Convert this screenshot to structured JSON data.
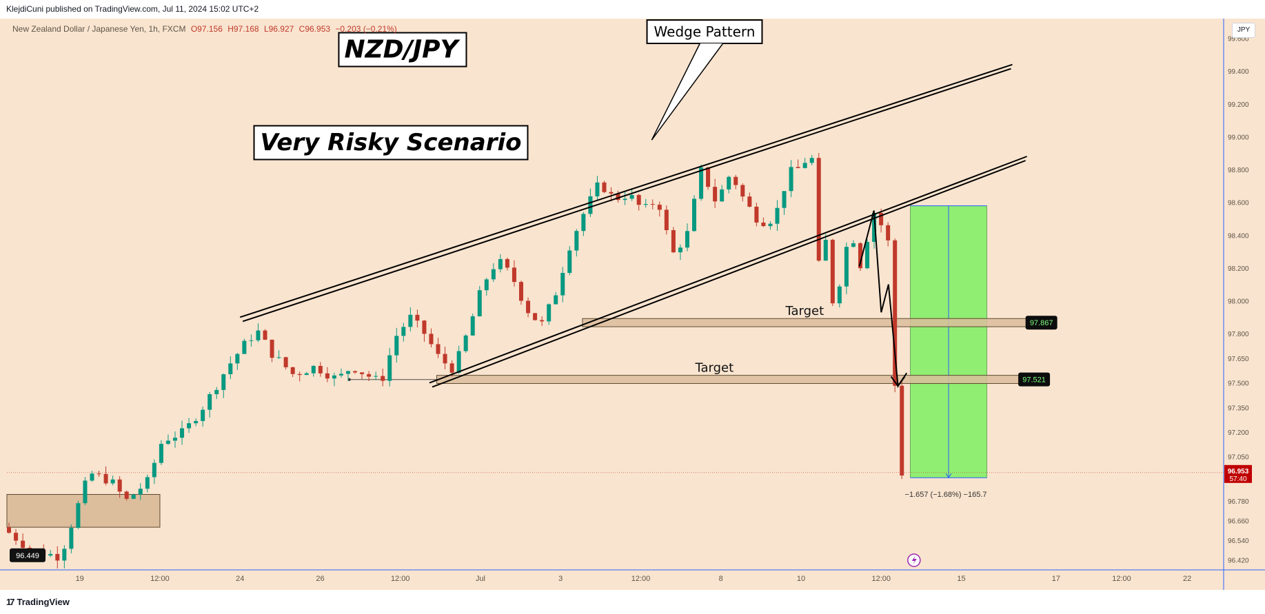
{
  "header": {
    "published_by": "KlejdiCuni published on TradingView.com, Jul 11, 2024 15:02 UTC+2"
  },
  "legend": {
    "symbol": "New Zealand Dollar / Japanese Yen, 1h, FXCM",
    "open": "O97.156",
    "high": "H97.168",
    "low": "L96.927",
    "close": "C96.953",
    "change": "−0.203 (−0.21%)"
  },
  "currency_button": "JPY",
  "footer": {
    "brand": "TradingView",
    "logo_icon": "tradingview-logo-icon"
  },
  "colors": {
    "background": "#f9e4cf",
    "up_candle": "#089981",
    "down_candle": "#c0392b",
    "target_zone": "#dcbd9c",
    "projection_zone": "#90ee72",
    "last_price_badge": "#c00000"
  },
  "chart_data": {
    "type": "candlestick",
    "symbol": "NZD/JPY",
    "interval": "1h",
    "ylim": [
      96.36,
      99.72
    ],
    "y_ticks": [
      {
        "value": 99.6,
        "label": "99.600"
      },
      {
        "value": 99.4,
        "label": "99.400"
      },
      {
        "value": 99.2,
        "label": "99.200"
      },
      {
        "value": 99.0,
        "label": "99.000"
      },
      {
        "value": 98.8,
        "label": "98.800"
      },
      {
        "value": 98.6,
        "label": "98.600"
      },
      {
        "value": 98.4,
        "label": "98.400"
      },
      {
        "value": 98.2,
        "label": "98.200"
      },
      {
        "value": 98.0,
        "label": "98.000"
      },
      {
        "value": 97.8,
        "label": "97.800"
      },
      {
        "value": 97.65,
        "label": "97.650"
      },
      {
        "value": 97.5,
        "label": "97.500"
      },
      {
        "value": 97.35,
        "label": "97.350"
      },
      {
        "value": 97.2,
        "label": "97.200"
      },
      {
        "value": 97.05,
        "label": "97.050"
      },
      {
        "value": 96.78,
        "label": "96.780"
      },
      {
        "value": 96.66,
        "label": "96.660"
      },
      {
        "value": 96.54,
        "label": "96.540"
      },
      {
        "value": 96.42,
        "label": "96.420"
      }
    ],
    "x_ticks": [
      {
        "t": 10,
        "label": "19"
      },
      {
        "t": 21,
        "label": "12:00"
      },
      {
        "t": 32,
        "label": "24"
      },
      {
        "t": 43,
        "label": "26"
      },
      {
        "t": 54,
        "label": "12:00"
      },
      {
        "t": 65,
        "label": "Jul"
      },
      {
        "t": 76,
        "label": "3"
      },
      {
        "t": 87,
        "label": "12:00"
      },
      {
        "t": 98,
        "label": "8"
      },
      {
        "t": 109,
        "label": "10"
      },
      {
        "t": 120,
        "label": "12:00"
      },
      {
        "t": 131,
        "label": "15"
      },
      {
        "t": 144,
        "label": "17"
      },
      {
        "t": 153,
        "label": "12:00"
      },
      {
        "t": 162,
        "label": "22"
      }
    ],
    "price_path": [
      [
        0,
        96.62
      ],
      [
        4,
        96.48
      ],
      [
        8,
        96.44
      ],
      [
        10,
        96.7
      ],
      [
        12,
        96.95
      ],
      [
        15,
        96.9
      ],
      [
        17,
        96.78
      ],
      [
        20,
        96.9
      ],
      [
        22,
        97.15
      ],
      [
        25,
        97.2
      ],
      [
        28,
        97.38
      ],
      [
        31,
        97.6
      ],
      [
        33,
        97.72
      ],
      [
        35,
        97.82
      ],
      [
        37,
        97.68
      ],
      [
        40,
        97.55
      ],
      [
        43,
        97.6
      ],
      [
        46,
        97.52
      ],
      [
        48,
        97.6
      ],
      [
        50,
        97.55
      ],
      [
        52,
        97.5
      ],
      [
        54,
        97.78
      ],
      [
        56,
        97.9
      ],
      [
        58,
        97.8
      ],
      [
        60,
        97.65
      ],
      [
        62,
        97.58
      ],
      [
        64,
        97.82
      ],
      [
        66,
        98.1
      ],
      [
        68,
        98.25
      ],
      [
        70,
        98.15
      ],
      [
        72,
        97.95
      ],
      [
        74,
        97.85
      ],
      [
        76,
        98.05
      ],
      [
        78,
        98.35
      ],
      [
        80,
        98.55
      ],
      [
        82,
        98.72
      ],
      [
        84,
        98.62
      ],
      [
        86,
        98.65
      ],
      [
        88,
        98.55
      ],
      [
        90,
        98.62
      ],
      [
        92,
        98.28
      ],
      [
        94,
        98.4
      ],
      [
        96,
        98.8
      ],
      [
        98,
        98.6
      ],
      [
        100,
        98.78
      ],
      [
        102,
        98.6
      ],
      [
        104,
        98.48
      ],
      [
        106,
        98.5
      ],
      [
        108,
        98.78
      ],
      [
        110,
        98.82
      ],
      [
        111,
        98.98
      ],
      [
        112,
        98.2
      ],
      [
        113,
        98.38
      ],
      [
        114,
        98.0
      ],
      [
        115,
        98.12
      ],
      [
        116,
        98.35
      ],
      [
        117,
        98.38
      ],
      [
        118,
        98.18
      ],
      [
        119,
        98.45
      ],
      [
        120,
        98.58
      ],
      [
        121,
        98.4
      ],
      [
        122,
        98.33
      ],
      [
        122.8,
        97.1
      ],
      [
        123.2,
        96.95
      ]
    ],
    "last_price": {
      "value": 96.953,
      "label": "96.953",
      "countdown": "57:40"
    },
    "left_price_label": "96.449",
    "wedge_upper": {
      "from": [
        32,
        97.9
      ],
      "to": [
        138,
        99.44
      ]
    },
    "wedge_lower": {
      "from": [
        58,
        97.5
      ],
      "to": [
        140,
        98.88
      ]
    },
    "targets": [
      {
        "label": "Target",
        "value": 97.867,
        "badge": "97.867",
        "from_t": 79,
        "to_t": 140
      },
      {
        "label": "Target",
        "value": 97.521,
        "badge": "97.521",
        "from_t": 59,
        "to_t": 139
      }
    ],
    "support_zone": {
      "from_t": 0,
      "to_t": 21,
      "low": 96.62,
      "high": 96.82
    },
    "projection": {
      "from_t": 124,
      "to_t": 134.5,
      "low": 96.922,
      "high": 98.579,
      "label": "−1.657 (−1.68%) −165.7"
    },
    "projection_path": [
      [
        117,
        98.21
      ],
      [
        119,
        98.55
      ],
      [
        120,
        97.93
      ],
      [
        121,
        98.1
      ],
      [
        122.3,
        97.48
      ],
      [
        123.5,
        97.56
      ]
    ],
    "annotations": {
      "title": "NZD/JPY",
      "scenario": "Very Risky Scenario",
      "callout": "Wedge Pattern"
    }
  }
}
